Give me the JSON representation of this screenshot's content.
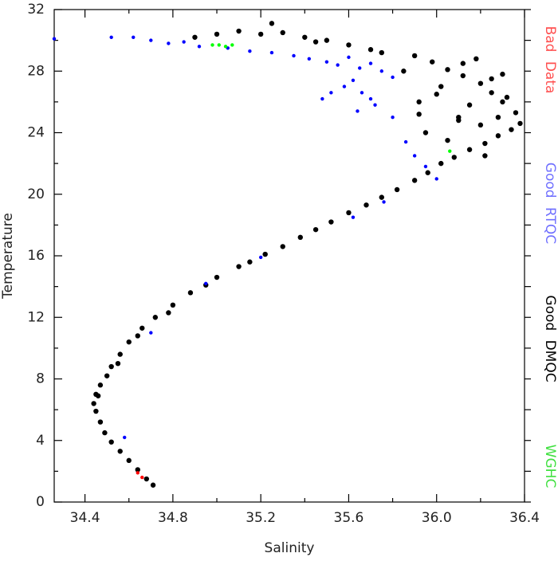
{
  "chart_data": {
    "type": "scatter",
    "x_label": "Salinity",
    "y_label": "Temperature",
    "xlim": [
      34.26,
      36.4
    ],
    "ylim": [
      0,
      32
    ],
    "xticks": [
      34.4,
      34.8,
      35.2,
      35.6,
      {
        "value": 36,
        "label": "36.0"
      },
      36.4
    ],
    "yticks": [
      0,
      4,
      8,
      12,
      16,
      20,
      24,
      28,
      32
    ],
    "grid": false,
    "series": [
      {
        "name": "Good DMQC",
        "color": "#000000",
        "x": [
          34.71,
          34.68,
          34.64,
          34.6,
          34.56,
          34.52,
          34.49,
          34.47,
          34.45,
          34.44,
          34.45,
          34.47,
          34.5,
          34.46,
          34.52,
          34.56,
          34.55,
          34.6,
          34.66,
          34.64,
          34.72,
          34.8,
          34.78,
          34.88,
          34.95,
          35.0,
          35.1,
          35.15,
          35.22,
          35.3,
          35.38,
          35.45,
          35.52,
          35.6,
          35.68,
          35.75,
          35.82,
          35.9,
          35.96,
          36.02,
          36.08,
          36.15,
          36.22,
          36.28,
          36.34,
          36.38,
          36.36,
          36.3,
          36.25,
          36.2,
          36.12,
          36.05,
          35.98,
          35.9,
          36.0,
          36.1,
          36.2,
          36.28,
          35.95,
          36.05,
          36.15,
          36.25,
          36.32,
          35.92,
          36.02,
          36.12,
          35.85,
          35.7,
          35.6,
          35.5,
          35.4,
          35.3,
          35.25,
          35.2,
          35.1,
          35.0,
          34.9,
          35.45,
          35.75,
          35.92,
          36.18,
          36.3,
          36.22,
          36.1
        ],
        "values": [
          1.1,
          1.5,
          2.1,
          2.7,
          3.3,
          3.9,
          4.5,
          5.2,
          5.9,
          6.4,
          7.0,
          7.6,
          8.2,
          6.9,
          8.8,
          9.6,
          9.0,
          10.4,
          11.3,
          10.8,
          12.0,
          12.8,
          12.3,
          13.6,
          14.1,
          14.6,
          15.3,
          15.6,
          16.1,
          16.6,
          17.2,
          17.7,
          18.2,
          18.8,
          19.3,
          19.8,
          20.3,
          20.9,
          21.4,
          22.0,
          22.4,
          22.9,
          23.3,
          23.8,
          24.2,
          24.6,
          25.3,
          26.0,
          26.6,
          27.2,
          27.7,
          28.1,
          28.6,
          29.0,
          26.5,
          25.0,
          24.5,
          25.0,
          24.0,
          23.5,
          25.8,
          27.5,
          26.3,
          26.0,
          27.0,
          28.5,
          28.0,
          29.4,
          29.7,
          30.0,
          30.2,
          30.5,
          31.1,
          30.4,
          30.6,
          30.4,
          30.2,
          29.9,
          29.2,
          25.2,
          28.8,
          27.8,
          22.5,
          24.8
        ]
      },
      {
        "name": "Good RTQC",
        "color": "#0000ff",
        "x": [
          34.52,
          34.62,
          34.7,
          34.78,
          34.85,
          34.92,
          35.05,
          35.15,
          35.25,
          35.35,
          35.42,
          35.5,
          35.55,
          35.6,
          35.65,
          35.7,
          35.75,
          35.8,
          35.62,
          35.58,
          35.66,
          35.7,
          35.52,
          35.48,
          35.72,
          35.64,
          35.8,
          35.86,
          35.9,
          35.95,
          36.0,
          34.26,
          34.58,
          34.7,
          34.95,
          35.2,
          35.62,
          35.76
        ],
        "values": [
          30.2,
          30.2,
          30.0,
          29.8,
          29.9,
          29.6,
          29.5,
          29.3,
          29.2,
          29.0,
          28.8,
          28.6,
          28.4,
          28.9,
          28.2,
          28.5,
          28.0,
          27.6,
          27.4,
          27.0,
          26.6,
          26.2,
          26.6,
          26.2,
          25.8,
          25.4,
          25.0,
          23.4,
          22.5,
          21.8,
          21.0,
          30.1,
          4.2,
          11.0,
          14.2,
          15.9,
          18.5,
          19.5
        ]
      },
      {
        "name": "WGHC",
        "color": "#00ff00",
        "x": [
          34.98,
          35.01,
          35.04,
          35.07,
          36.06
        ],
        "values": [
          29.7,
          29.7,
          29.6,
          29.7,
          22.8
        ]
      },
      {
        "name": "Bad Data",
        "color": "#ff0000",
        "x": [
          34.66,
          34.64
        ],
        "values": [
          1.6,
          1.9
        ]
      }
    ]
  }
}
